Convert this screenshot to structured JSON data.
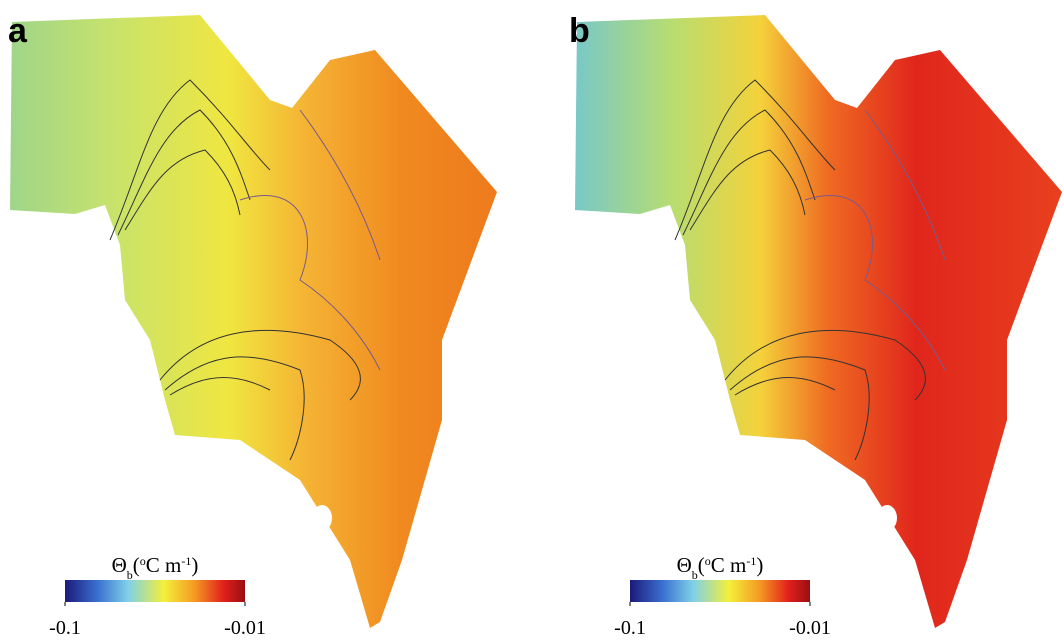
{
  "panels": [
    {
      "label": "a",
      "colorbar": {
        "title": [
          {
            "text": "Θ"
          },
          {
            "text": "b",
            "shift": "sub"
          },
          {
            "text": "("
          },
          {
            "text": "o",
            "shift": "super"
          },
          {
            "text": "C m"
          },
          {
            "text": "-1",
            "shift": "super"
          },
          {
            "text": ")"
          }
        ],
        "range": [
          -0.1,
          -0.01
        ],
        "ticks": [
          -0.1,
          -0.01
        ]
      }
    },
    {
      "label": "b",
      "colorbar": {
        "title": [
          {
            "text": "Θ"
          },
          {
            "text": "b",
            "shift": "sub"
          },
          {
            "text": "("
          },
          {
            "text": "o",
            "shift": "super"
          },
          {
            "text": "C m"
          },
          {
            "text": "-1",
            "shift": "super"
          },
          {
            "text": ")"
          }
        ],
        "range": [
          -0.1,
          -0.01
        ],
        "ticks": [
          -0.1,
          -0.01
        ]
      }
    }
  ]
}
